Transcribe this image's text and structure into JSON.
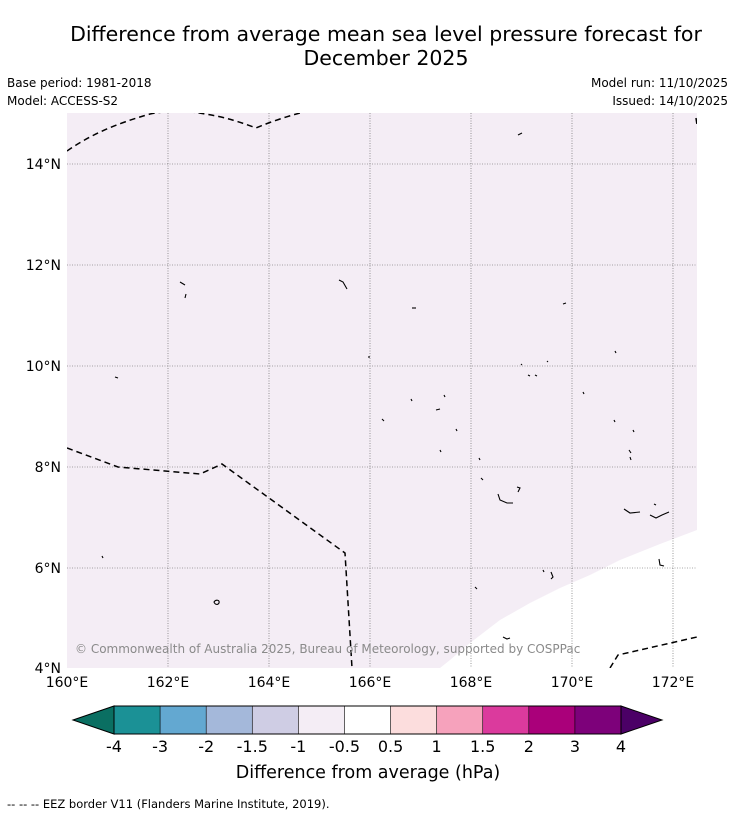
{
  "title_line1": "Difference from average mean sea level pressure forecast for",
  "title_line2": "December 2025",
  "base_period": "Base period: 1981-2018",
  "model": "Model: ACCESS-S2",
  "model_run": "Model run: 11/10/2025",
  "issued": "Issued: 14/10/2025",
  "map": {
    "lat_labels": [
      "14°N",
      "12°N",
      "10°N",
      "8°N",
      "6°N",
      "4°N"
    ],
    "lon_labels": [
      "160°E",
      "162°E",
      "164°E",
      "166°E",
      "168°E",
      "170°E",
      "172°E"
    ],
    "lat_range": [
      4,
      15
    ],
    "lon_range": [
      160,
      172.5
    ],
    "fill_category": "-1 to -0.5 hPa",
    "fill_color": "#f4edf5",
    "unfilled_category": "-0.5 to 0.5 hPa",
    "copyright": "© Commonwealth of Australia 2025, Bureau of Meteorology, supported by COSPPac"
  },
  "colorbar": {
    "title": "Difference from average (hPa)",
    "ticks": [
      "-4",
      "-3",
      "-2",
      "-1.5",
      "-1",
      "-0.5",
      "0.5",
      "1",
      "1.5",
      "2",
      "3",
      "4"
    ],
    "colors": [
      "#1b9196",
      "#63a8d1",
      "#a4b8da",
      "#cfcde4",
      "#f4edf5",
      "#ffffff",
      "#fcdddd",
      "#f6a2bc",
      "#db3a9d",
      "#aa007a",
      "#7d017a"
    ],
    "low_extend_color": "#0a6f62",
    "high_extend_color": "#4b0066"
  },
  "footnote": "-- -- -- EEZ border V11 (Flanders Marine Institute, 2019)."
}
